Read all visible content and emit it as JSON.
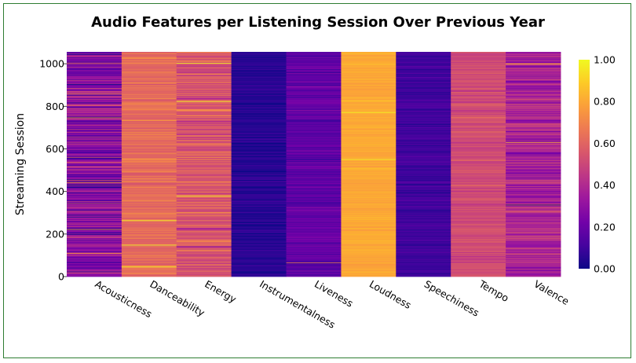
{
  "chart_data": {
    "type": "heatmap",
    "title": "Audio Features per Listening Session Over Previous Year",
    "xlabel": "",
    "ylabel": "Streaming Session",
    "categories": [
      "Acousticness",
      "Danceability",
      "Energy",
      "Instrumentalness",
      "Liveness",
      "Loudness",
      "Speechiness",
      "Tempo",
      "Valence"
    ],
    "ylim": [
      0,
      1056
    ],
    "yticks": [
      0,
      200,
      400,
      600,
      800,
      1000
    ],
    "ytick_labels": [
      "0",
      "200",
      "400",
      "600",
      "800",
      "1000"
    ],
    "approx_column_means": [
      0.28,
      0.62,
      0.55,
      0.05,
      0.18,
      0.8,
      0.1,
      0.52,
      0.38
    ],
    "approx_column_spread": [
      0.12,
      0.05,
      0.08,
      0.03,
      0.04,
      0.02,
      0.03,
      0.04,
      0.08
    ],
    "colorbar": {
      "min": 0,
      "max": 1,
      "ticks": [
        "0.00",
        "0.20",
        "0.40",
        "0.60",
        "0.80",
        "1.00"
      ],
      "colorscale": "plasma"
    },
    "grid": false
  },
  "colors": {
    "frame": "#2e7d32",
    "plasma": [
      "#0d0887",
      "#46039f",
      "#7201a8",
      "#9c179e",
      "#bd3786",
      "#d8576b",
      "#ed7953",
      "#fb9f3a",
      "#fdca26",
      "#f0f921"
    ]
  }
}
